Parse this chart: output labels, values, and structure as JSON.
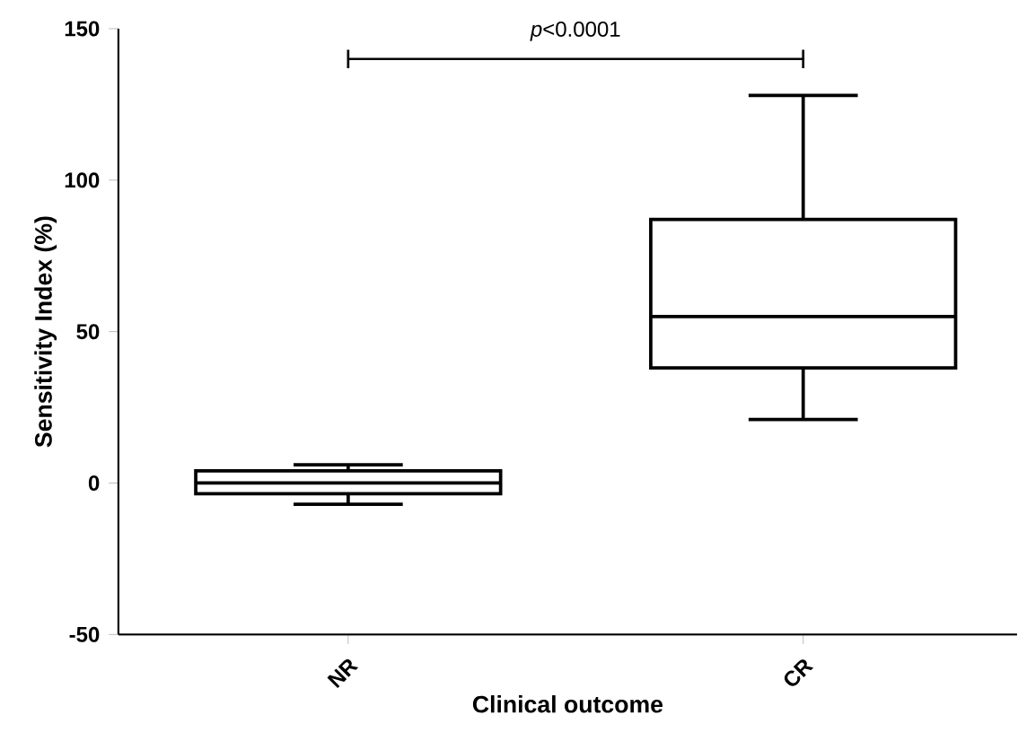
{
  "chart_data": {
    "type": "box",
    "xlabel": "Clinical outcome",
    "ylabel": "Sensitivity Index (%)",
    "categories": [
      "NR",
      "CR"
    ],
    "series": [
      {
        "color": "#000000",
        "boxes": [
          {
            "low": -7,
            "q1": -3.5,
            "median": 0,
            "q3": 4,
            "high": 6
          },
          {
            "low": 21,
            "q1": 38,
            "median": 55,
            "q3": 87,
            "high": 128
          }
        ]
      }
    ],
    "ylim": [
      -50,
      150
    ],
    "yticks": [
      -50,
      0,
      50,
      100,
      150
    ],
    "annotations": [
      "*p*<0.0001"
    ]
  }
}
